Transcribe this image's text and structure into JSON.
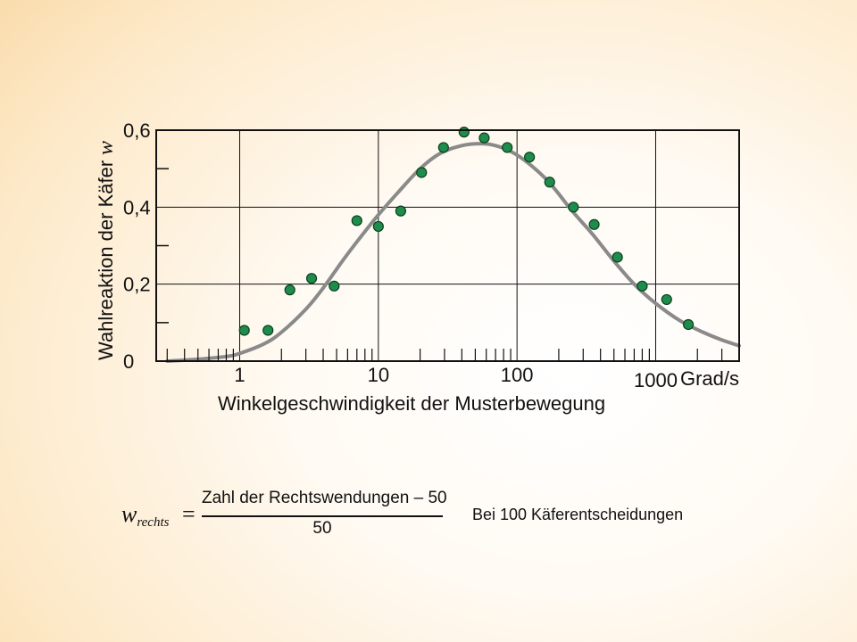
{
  "chart_data": {
    "type": "scatter",
    "ylabel": "Wahlreaktion der Käfer",
    "ylabel_symbol": "w",
    "xlabel": "Winkelgeschwindigkeit der Musterbewegung",
    "x_unit": "Grad/s",
    "x_scale": "log",
    "xlim": [
      0.25,
      4000
    ],
    "ylim": [
      0,
      0.6
    ],
    "grid": true,
    "x_ticks": [
      {
        "value": 1,
        "label": "1"
      },
      {
        "value": 10,
        "label": "10"
      },
      {
        "value": 100,
        "label": "100"
      },
      {
        "value": 1000,
        "label": "1000"
      }
    ],
    "y_ticks": [
      {
        "value": 0,
        "label": "0"
      },
      {
        "value": 0.2,
        "label": "0,2"
      },
      {
        "value": 0.4,
        "label": "0,4"
      },
      {
        "value": 0.6,
        "label": "0,6"
      }
    ],
    "series": [
      {
        "kind": "points",
        "color": "#1e8c4a",
        "x": [
          1.08,
          1.6,
          2.3,
          3.3,
          4.8,
          7.0,
          10.0,
          14.5,
          20.5,
          29.5,
          41.5,
          58.0,
          85.0,
          123.0,
          172.0,
          255.0,
          360.0,
          530.0,
          800.0,
          1200.0,
          1720.0
        ],
        "y": [
          0.08,
          0.08,
          0.185,
          0.215,
          0.195,
          0.365,
          0.35,
          0.39,
          0.49,
          0.555,
          0.595,
          0.58,
          0.555,
          0.53,
          0.465,
          0.4,
          0.355,
          0.27,
          0.195,
          0.16,
          0.095
        ]
      },
      {
        "kind": "fit-curve",
        "color": "#8a8a8a",
        "x": [
          0.3,
          0.5,
          0.8,
          1.0,
          1.5,
          2.0,
          3.0,
          4.0,
          5.5,
          7.0,
          10.0,
          14.0,
          20.0,
          28.0,
          40.0,
          55.0,
          70.0,
          90.0,
          120.0,
          170.0,
          250.0,
          350.0,
          500.0,
          700.0,
          1000.0,
          1500.0,
          2200.0,
          3000.0,
          4000.0
        ],
        "y": [
          0.0,
          0.005,
          0.012,
          0.02,
          0.045,
          0.075,
          0.135,
          0.19,
          0.26,
          0.31,
          0.38,
          0.44,
          0.5,
          0.54,
          0.56,
          0.565,
          0.56,
          0.545,
          0.515,
          0.465,
          0.39,
          0.33,
          0.26,
          0.2,
          0.15,
          0.105,
          0.075,
          0.055,
          0.04
        ]
      }
    ]
  },
  "formula": {
    "lhs_symbol": "w",
    "lhs_subscript": "rechts",
    "equals": "=",
    "numerator": "Zahl der Rechtswendungen – 50",
    "denominator": "50"
  },
  "note": "Bei 100 Käferentscheidungen",
  "colors": {
    "point_fill": "#1e8c4a",
    "point_stroke": "#0b3f1f",
    "curve": "#8a8a8a",
    "axis": "#111111"
  }
}
